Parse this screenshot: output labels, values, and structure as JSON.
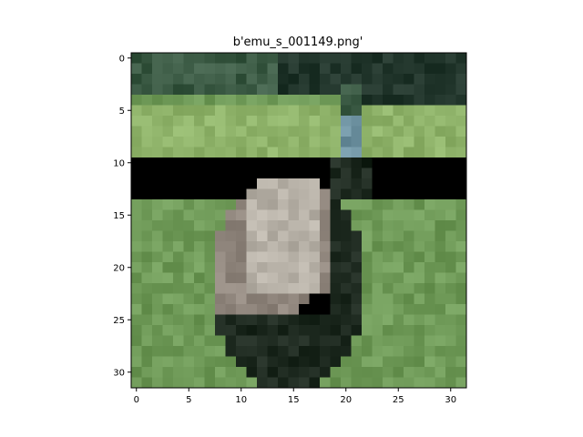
{
  "figure": {
    "title": "b'emu_s_001149.png'"
  },
  "image": {
    "grid_size": 32,
    "subject": "emu-photo",
    "colors": {
      "grass_light": "#8fb36a",
      "grass_mid": "#6f9a58",
      "grass_dark": "#5f8a4c",
      "tree_dark": "#22362c",
      "tree_mid": "#3b5a44",
      "emu_feather_light": "#b8b2a8",
      "emu_feather_mid": "#8f857c",
      "emu_feather_dark": "#1e2a20",
      "emu_neck": "#6f93a2",
      "frame": "#000000"
    }
  },
  "axes": {
    "x_ticks": [
      "0",
      "5",
      "10",
      "15",
      "20",
      "25",
      "30"
    ],
    "y_ticks": [
      "0",
      "5",
      "10",
      "15",
      "20",
      "25",
      "30"
    ]
  }
}
